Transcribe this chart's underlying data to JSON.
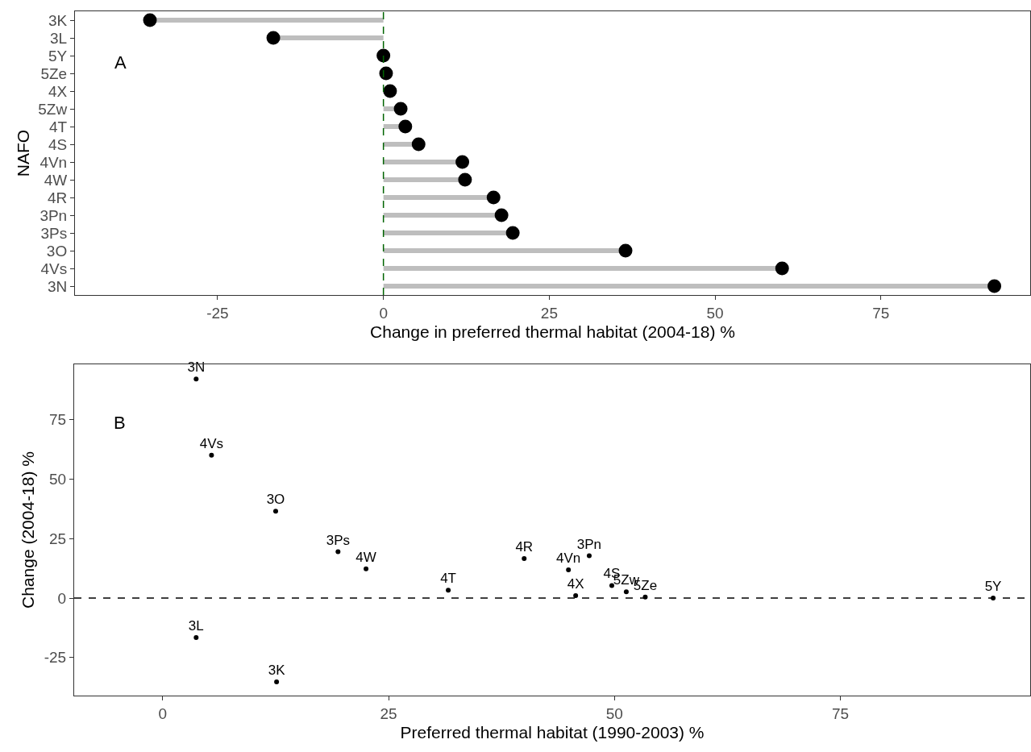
{
  "chart_data": [
    {
      "type": "lollipop",
      "orientation": "horizontal",
      "ylabel": "NAFO",
      "xlabel": "Change in preferred thermal habitat (2004-18) %",
      "annotations": [
        "A"
      ],
      "categories": [
        "3K",
        "3L",
        "5Y",
        "5Ze",
        "4X",
        "5Zw",
        "4T",
        "4S",
        "4Vn",
        "4W",
        "4R",
        "3Pn",
        "3Ps",
        "3O",
        "4Vs",
        "3N"
      ],
      "values": [
        -35.2,
        -16.6,
        0,
        0.4,
        1.0,
        2.6,
        3.3,
        5.3,
        11.9,
        12.3,
        16.6,
        17.8,
        19.5,
        36.5,
        60.1,
        92.1
      ],
      "color": "#000000",
      "xlim": [
        -46.5,
        97.5
      ],
      "xticks": [
        -25,
        0,
        25,
        50,
        75
      ],
      "ref_lines": [
        {
          "axis": "x",
          "value": 0,
          "color": "#006400",
          "line_style": "dashed"
        }
      ],
      "grid": false
    },
    {
      "type": "scatter",
      "marker": "circle",
      "color": "#000000",
      "xlabel": "Preferred thermal habitat (1990-2003) %",
      "ylabel": "Change (2004-18) %",
      "x": [
        3.7,
        5.4,
        12.5,
        19.4,
        22.5,
        31.6,
        40.0,
        44.9,
        47.2,
        45.7,
        49.7,
        51.3,
        53.4,
        91.9,
        3.7,
        12.6
      ],
      "values": [
        92.1,
        60.1,
        36.5,
        19.5,
        12.3,
        3.3,
        16.6,
        11.9,
        17.8,
        1.0,
        5.3,
        2.6,
        0.4,
        0,
        -16.6,
        -35.2
      ],
      "annotations": [
        "B",
        {
          "text": "3N",
          "x": 3.7,
          "y": 92.1
        },
        {
          "text": "4Vs",
          "x": 5.4,
          "y": 60.1
        },
        {
          "text": "3O",
          "x": 12.5,
          "y": 36.5
        },
        {
          "text": "3Ps",
          "x": 19.4,
          "y": 19.5
        },
        {
          "text": "4W",
          "x": 22.5,
          "y": 12.3
        },
        {
          "text": "4T",
          "x": 31.6,
          "y": 3.3
        },
        {
          "text": "4R",
          "x": 40.0,
          "y": 16.6
        },
        {
          "text": "4Vn",
          "x": 44.9,
          "y": 11.9
        },
        {
          "text": "3Pn",
          "x": 47.2,
          "y": 17.8
        },
        {
          "text": "4X",
          "x": 45.7,
          "y": 1.0
        },
        {
          "text": "4S",
          "x": 49.7,
          "y": 5.3
        },
        {
          "text": "5Zw",
          "x": 51.3,
          "y": 2.6
        },
        {
          "text": "5Ze",
          "x": 53.4,
          "y": 0.4
        },
        {
          "text": "5Y",
          "x": 91.9,
          "y": 0
        },
        {
          "text": "3L",
          "x": 3.7,
          "y": -16.6
        },
        {
          "text": "3K",
          "x": 12.6,
          "y": -35.2
        }
      ],
      "xlim": [
        -9.8,
        96
      ],
      "xticks": [
        0,
        25,
        50,
        75
      ],
      "ylim": [
        -41,
        98.3
      ],
      "yticks": [
        -25,
        0,
        25,
        50,
        75
      ],
      "ref_lines": [
        {
          "axis": "y",
          "value": 0,
          "color": "#000000",
          "line_style": "dashed"
        }
      ],
      "grid": false
    }
  ]
}
